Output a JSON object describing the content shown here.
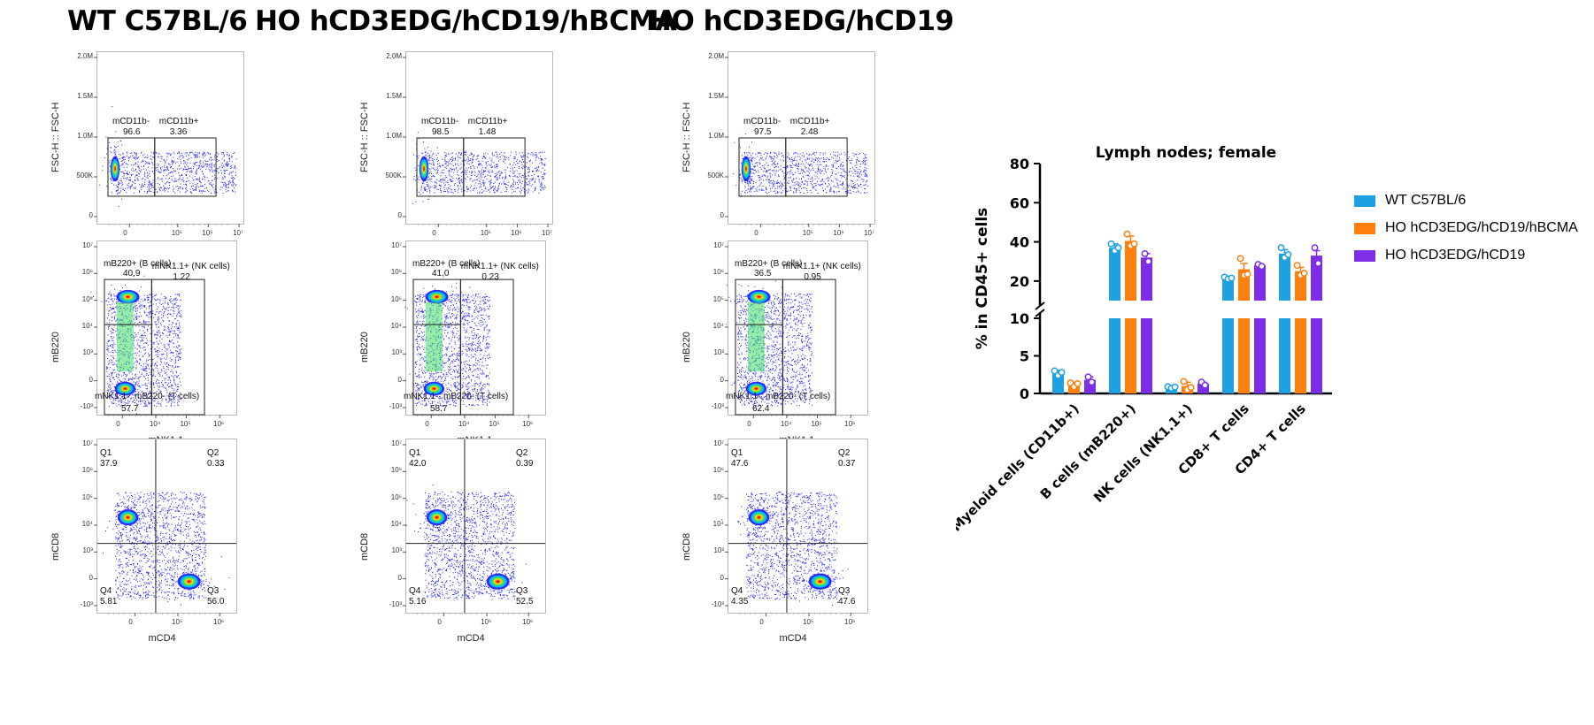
{
  "columns": [
    {
      "title": "WT C57BL/6",
      "panels": [
        {
          "kind": "myeloid",
          "ylabel": "FSC-H :: FSC-H",
          "xlabel": "mCD11b",
          "yticks": [
            "2.0M",
            "1.5M",
            "1.0M",
            "500K",
            "0"
          ],
          "xticks": [
            "0",
            "10⁵",
            "10⁶",
            "10⁷"
          ],
          "gates": [
            {
              "label": "mCD11b-",
              "value": "96.6"
            },
            {
              "label": "mCD11b+",
              "value": "3.36"
            }
          ]
        },
        {
          "kind": "lymph",
          "ylabel": "mB220",
          "xlabel": "mNK1.1",
          "yticks": [
            "10⁷",
            "10⁶",
            "10⁵",
            "10⁴",
            "10³",
            "0",
            "-10³"
          ],
          "xticks": [
            "0",
            "10⁴",
            "10⁵",
            "10⁶"
          ],
          "gates": [
            {
              "label": "mB220+ (B cells)",
              "value": "40.9"
            },
            {
              "label": "mNK1.1+ (NK cells)",
              "value": "1.22"
            },
            {
              "label": "mNK1.1-, mB220- (T cells)",
              "value": "57.7"
            }
          ]
        },
        {
          "kind": "quad",
          "ylabel": "mCD8",
          "xlabel": "mCD4",
          "yticks": [
            "10⁷",
            "10⁶",
            "10⁵",
            "10⁴",
            "10³",
            "0",
            "-10³"
          ],
          "xticks": [
            "0",
            "10⁵",
            "10⁶"
          ],
          "quadrants": {
            "q1": "37.9",
            "q2": "0.33",
            "q3": "56.0",
            "q4": "5.81"
          },
          "quadrant_names": {
            "q1": "Q1",
            "q2": "Q2",
            "q3": "Q3",
            "q4": "Q4"
          }
        }
      ]
    },
    {
      "title": "HO hCD3EDG/hCD19/hBCMA",
      "panels": [
        {
          "kind": "myeloid",
          "ylabel": "FSC-H :: FSC-H",
          "xlabel": "mCD11b",
          "yticks": [
            "2.0M",
            "1.5M",
            "1.0M",
            "500K",
            "0"
          ],
          "xticks": [
            "0",
            "10⁵",
            "10⁶",
            "10⁷"
          ],
          "gates": [
            {
              "label": "mCD11b-",
              "value": "98.5"
            },
            {
              "label": "mCD11b+",
              "value": "1.48"
            }
          ]
        },
        {
          "kind": "lymph",
          "ylabel": "mB220",
          "xlabel": "mNK1.1",
          "yticks": [
            "10⁷",
            "10⁶",
            "10⁵",
            "10⁴",
            "10³",
            "0",
            "-10³"
          ],
          "xticks": [
            "0",
            "10⁴",
            "10⁵",
            "10⁶"
          ],
          "gates": [
            {
              "label": "mB220+ (B cells)",
              "value": "41.0"
            },
            {
              "label": "mNK1.1+ (NK cells)",
              "value": "0.23"
            },
            {
              "label": "mNK1.1-, mB220- (T cells)",
              "value": "58.7"
            }
          ]
        },
        {
          "kind": "quad",
          "ylabel": "mCD8",
          "xlabel": "mCD4",
          "yticks": [
            "10⁷",
            "10⁶",
            "10⁵",
            "10⁴",
            "10³",
            "0",
            "-10³"
          ],
          "xticks": [
            "0",
            "10⁵",
            "10⁶"
          ],
          "quadrants": {
            "q1": "42.0",
            "q2": "0.39",
            "q3": "52.5",
            "q4": "5.16"
          },
          "quadrant_names": {
            "q1": "Q1",
            "q2": "Q2",
            "q3": "Q3",
            "q4": "Q4"
          }
        }
      ]
    },
    {
      "title": "HO hCD3EDG/hCD19",
      "panels": [
        {
          "kind": "myeloid",
          "ylabel": "FSC-H :: FSC-H",
          "xlabel": "mCD11b",
          "yticks": [
            "2.0M",
            "1.5M",
            "1.0M",
            "500K",
            "0"
          ],
          "xticks": [
            "0",
            "10⁵",
            "10⁶",
            "10⁷"
          ],
          "gates": [
            {
              "label": "mCD11b-",
              "value": "97.5"
            },
            {
              "label": "mCD11b+",
              "value": "2.48"
            }
          ]
        },
        {
          "kind": "lymph",
          "ylabel": "mB220",
          "xlabel": "mNK1.1",
          "yticks": [
            "10⁷",
            "10⁶",
            "10⁵",
            "10⁴",
            "10³",
            "0",
            "-10³"
          ],
          "xticks": [
            "0",
            "10⁴",
            "10⁵",
            "10⁶"
          ],
          "gates": [
            {
              "label": "mB220+ (B cells)",
              "value": "36.5"
            },
            {
              "label": "mNK1.1+ (NK cells)",
              "value": "0.95"
            },
            {
              "label": "mNK1.1-, mB220- (T cells)",
              "value": "62.4"
            }
          ]
        },
        {
          "kind": "quad",
          "ylabel": "mCD8",
          "xlabel": "mCD4",
          "yticks": [
            "10⁷",
            "10⁶",
            "10⁵",
            "10⁴",
            "10³",
            "0",
            "-10³"
          ],
          "xticks": [
            "0",
            "10⁵",
            "10⁶"
          ],
          "quadrants": {
            "q1": "47.6",
            "q2": "0.37",
            "q3": "47.6",
            "q4": "4.35"
          },
          "quadrant_names": {
            "q1": "Q1",
            "q2": "Q2",
            "q3": "Q3",
            "q4": "Q4"
          }
        }
      ]
    }
  ],
  "chart_data": {
    "type": "bar",
    "title": "Lymph nodes; female",
    "ylabel": "% in CD45+ cells",
    "xlabel": "",
    "categories": [
      "Myeloid cells (CD11b+)",
      "B cells (mB220+)",
      "NK cells (NK1.1+)",
      "CD8+ T cells",
      "CD4+ T cells"
    ],
    "y_axis": "broken",
    "lower_segment": {
      "ylim": [
        0,
        10
      ],
      "ticks": [
        0,
        5,
        10
      ]
    },
    "upper_segment": {
      "ylim": [
        10,
        80
      ],
      "ticks": [
        20,
        40,
        60,
        80
      ]
    },
    "series": [
      {
        "name": "WT C57BL/6",
        "color": "#1ea1e3",
        "values": [
          2.7,
          37.0,
          0.8,
          21.5,
          34.0
        ],
        "sem": [
          0.4,
          2.0,
          0.15,
          1.0,
          2.0
        ],
        "points": [
          [
            3.0,
            2.4,
            2.8
          ],
          [
            39.0,
            35.5,
            37.0
          ],
          [
            0.9,
            0.7,
            0.85
          ],
          [
            22.0,
            21.0,
            21.5
          ],
          [
            37.0,
            32.0,
            33.5
          ]
        ]
      },
      {
        "name": "HO hCD3EDG/hCD19/hBCMA",
        "color": "#ff7f0e",
        "values": [
          1.2,
          40.5,
          1.0,
          26.0,
          25.0
        ],
        "sem": [
          0.3,
          2.5,
          0.5,
          3.0,
          2.0
        ],
        "points": [
          [
            1.4,
            0.9,
            1.3
          ],
          [
            44.0,
            38.0,
            39.0
          ],
          [
            1.6,
            0.5,
            0.8
          ],
          [
            31.5,
            23.0,
            23.5
          ],
          [
            28.0,
            23.0,
            24.0
          ]
        ]
      },
      {
        "name": "HO hCD3EDG/hCD19",
        "color": "#7d2ee6",
        "values": [
          1.8,
          32.0,
          1.3,
          28.0,
          33.0
        ],
        "sem": [
          0.4,
          2.0,
          0.2,
          0.8,
          2.5
        ],
        "points": [
          [
            2.2,
            1.5
          ],
          [
            34.0,
            30.0
          ],
          [
            1.5,
            1.1
          ],
          [
            28.5,
            27.5
          ],
          [
            37.0,
            29.0
          ]
        ]
      }
    ],
    "legend_position": "right",
    "grid": false
  },
  "colors": {
    "wt": "#1ea1e3",
    "bcma": "#ff7f0e",
    "cd19": "#7d2ee6",
    "dot_blue": "#1a1aff"
  }
}
